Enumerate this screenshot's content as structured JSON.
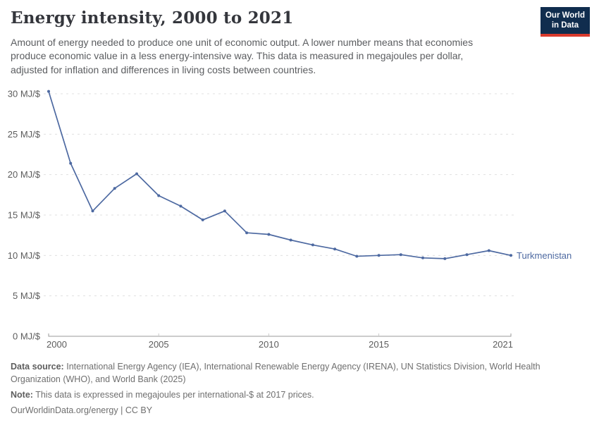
{
  "header": {
    "title": "Energy intensity, 2000 to 2021",
    "subtitle": "Amount of energy needed to produce one unit of economic output. A lower number means that economies produce economic value in a less energy-intensive way. This data is measured in megajoules per dollar, adjusted for inflation and differences in living costs between countries.",
    "logo": {
      "line1": "Our World",
      "line2": "in Data"
    }
  },
  "chart_data": {
    "type": "line",
    "title": "Energy intensity, 2000 to 2021",
    "unit": "MJ/$",
    "x": [
      2000,
      2001,
      2002,
      2003,
      2004,
      2005,
      2006,
      2007,
      2008,
      2009,
      2010,
      2011,
      2012,
      2013,
      2014,
      2015,
      2016,
      2017,
      2018,
      2019,
      2020,
      2021
    ],
    "series": [
      {
        "name": "Turkmenistan",
        "values": [
          30.3,
          21.4,
          15.5,
          18.3,
          20.1,
          17.4,
          16.1,
          14.4,
          15.5,
          12.8,
          12.6,
          11.9,
          11.3,
          10.8,
          9.9,
          10.0,
          10.1,
          9.7,
          9.6,
          10.1,
          10.6,
          10.0
        ]
      }
    ],
    "ylim": [
      0,
      30
    ],
    "yticks": [
      0,
      5,
      10,
      15,
      20,
      25,
      30
    ],
    "ytick_format": "{v} MJ/$",
    "xticks": [
      2000,
      2005,
      2010,
      2015,
      2021
    ],
    "grid": "horizontal-dashed",
    "legend": "end-of-line-label"
  },
  "footer": {
    "sources_label": "Data source:",
    "sources_text": "International Energy Agency (IEA), International Renewable Energy Agency (IRENA), UN Statistics Division, World Health Organization (WHO), and World Bank (2025)",
    "note_label": "Note:",
    "note_text": "This data is expressed in megajoules per international-$ at 2017 prices.",
    "url": "OurWorldinData.org/energy",
    "separator": " | ",
    "license": "CC BY"
  },
  "colors": {
    "line": "#4d69a1",
    "entity_label": "#4d69a1",
    "grid": "#e0e0e0",
    "axis": "#9a9a9a",
    "inner_tick": "#c9c9c9",
    "tick_label": "#5c5c5c",
    "logo_bg": "#102d4e",
    "logo_accent": "#d93a2d"
  }
}
